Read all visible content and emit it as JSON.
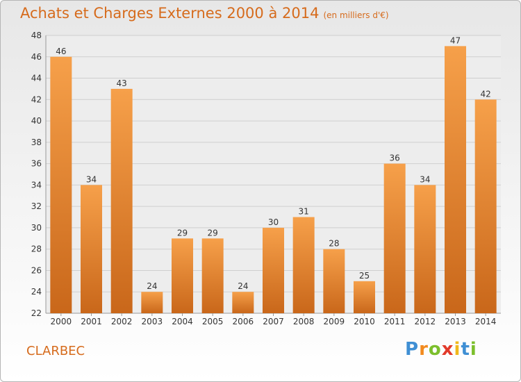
{
  "chart_data": {
    "type": "bar",
    "title": "Achats et Charges Externes 2000 à 2014",
    "unit_note": "(en milliers d'€)",
    "categories": [
      "2000",
      "2001",
      "2002",
      "2003",
      "2004",
      "2005",
      "2006",
      "2007",
      "2008",
      "2009",
      "2010",
      "2011",
      "2012",
      "2013",
      "2014"
    ],
    "values": [
      46,
      34,
      43,
      24,
      29,
      29,
      24,
      30,
      31,
      28,
      25,
      36,
      34,
      47,
      42
    ],
    "ylim": [
      22,
      48
    ],
    "yticks": [
      22,
      24,
      26,
      28,
      30,
      32,
      34,
      36,
      38,
      40,
      42,
      44,
      46,
      48
    ],
    "grid": true,
    "bar_color": "#ef8a30"
  },
  "place_name": "CLARBEC",
  "brand": {
    "letters": [
      "P",
      "r",
      "o",
      "x",
      "i",
      "t",
      "i"
    ],
    "colors": [
      "#3f8fd4",
      "#f28a1e",
      "#7cbf2c",
      "#e23a2a",
      "#f0b81c",
      "#3f8fd4",
      "#7cbf2c"
    ]
  }
}
